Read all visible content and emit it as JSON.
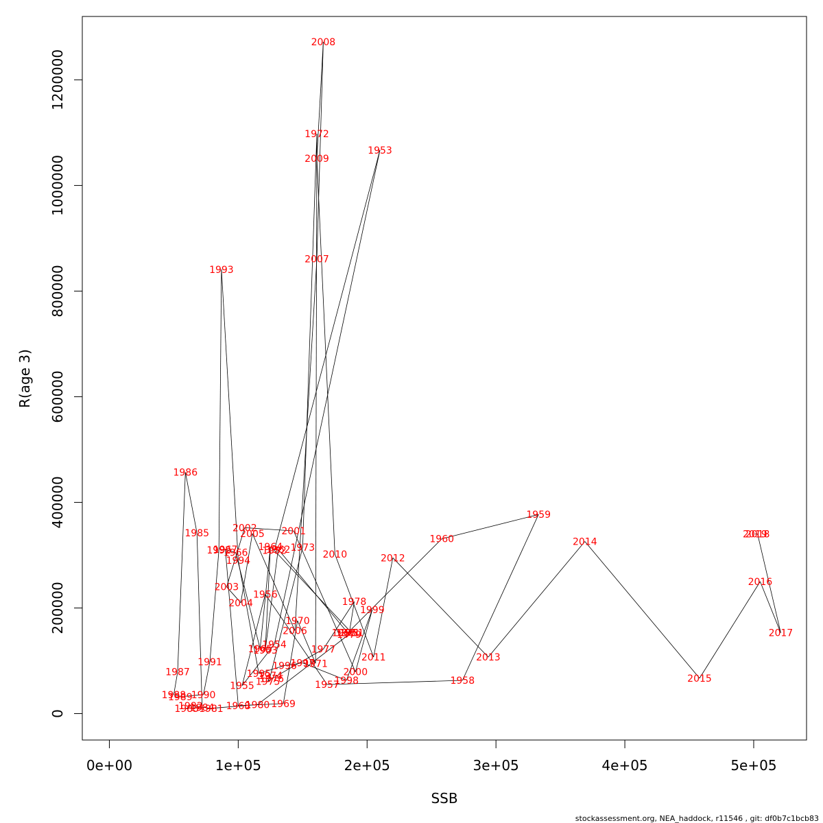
{
  "caption": "stockassessment.org, NEA_haddock, r11546 , git: df0b7c1bcb83",
  "chart_data": {
    "type": "line",
    "xlabel": "SSB",
    "ylabel": "R(age 3)",
    "xlim": [
      -21000,
      541000
    ],
    "ylim": [
      -50000,
      1320000
    ],
    "x_ticks": [
      0,
      100000,
      200000,
      300000,
      400000,
      500000
    ],
    "x_tick_labels": [
      "0e+00",
      "1e+05",
      "2e+05",
      "3e+05",
      "4e+05",
      "5e+05"
    ],
    "y_ticks": [
      0,
      200000,
      400000,
      600000,
      800000,
      1000000,
      1200000
    ],
    "y_tick_labels": [
      "0",
      "200000",
      "400000",
      "600000",
      "800000",
      "1000000",
      "1200000"
    ],
    "grid": false,
    "line_color": "#000000",
    "label_color": "#ff0000",
    "points": [
      {
        "year": "1950",
        "ssb": 182000,
        "r": 153000
      },
      {
        "year": "1951",
        "ssb": 188000,
        "r": 153000
      },
      {
        "year": "1952",
        "ssb": 128000,
        "r": 309000
      },
      {
        "year": "1953",
        "ssb": 210000,
        "r": 1067000
      },
      {
        "year": "1954",
        "ssb": 128000,
        "r": 131000
      },
      {
        "year": "1955",
        "ssb": 103000,
        "r": 53000
      },
      {
        "year": "1956",
        "ssb": 121000,
        "r": 226000
      },
      {
        "year": "1957",
        "ssb": 169000,
        "r": 55000
      },
      {
        "year": "1958",
        "ssb": 274000,
        "r": 63000
      },
      {
        "year": "1959",
        "ssb": 333000,
        "r": 377000
      },
      {
        "year": "1960",
        "ssb": 258000,
        "r": 331000
      },
      {
        "year": "1961",
        "ssb": 185000,
        "r": 153000
      },
      {
        "year": "1962",
        "ssb": 131000,
        "r": 311000
      },
      {
        "year": "1963",
        "ssb": 121000,
        "r": 120000
      },
      {
        "year": "1964",
        "ssb": 125000,
        "r": 316000
      },
      {
        "year": "1965",
        "ssb": 117000,
        "r": 123000
      },
      {
        "year": "1966",
        "ssb": 98000,
        "r": 305000
      },
      {
        "year": "1967",
        "ssb": 90000,
        "r": 311000
      },
      {
        "year": "1968",
        "ssb": 100000,
        "r": 15000
      },
      {
        "year": "1969",
        "ssb": 135000,
        "r": 19000
      },
      {
        "year": "1970",
        "ssb": 146000,
        "r": 176000
      },
      {
        "year": "1971",
        "ssb": 160000,
        "r": 95000
      },
      {
        "year": "1972",
        "ssb": 161000,
        "r": 1098000
      },
      {
        "year": "1973",
        "ssb": 150000,
        "r": 315000
      },
      {
        "year": "1974",
        "ssb": 125000,
        "r": 72000
      },
      {
        "year": "1975",
        "ssb": 123000,
        "r": 61000
      },
      {
        "year": "1976",
        "ssb": 126000,
        "r": 66000
      },
      {
        "year": "1977",
        "ssb": 166000,
        "r": 122000
      },
      {
        "year": "1978",
        "ssb": 190000,
        "r": 212000
      },
      {
        "year": "1979",
        "ssb": 186000,
        "r": 150000
      },
      {
        "year": "1980",
        "ssb": 115000,
        "r": 17000
      },
      {
        "year": "1981",
        "ssb": 79000,
        "r": 10000
      },
      {
        "year": "1982",
        "ssb": 63000,
        "r": 15000
      },
      {
        "year": "1983",
        "ssb": 60000,
        "r": 10000
      },
      {
        "year": "1984",
        "ssb": 72000,
        "r": 12000
      },
      {
        "year": "1985",
        "ssb": 68000,
        "r": 342000
      },
      {
        "year": "1986",
        "ssb": 59000,
        "r": 457000
      },
      {
        "year": "1987",
        "ssb": 53000,
        "r": 79000
      },
      {
        "year": "1988",
        "ssb": 50000,
        "r": 36000
      },
      {
        "year": "1989",
        "ssb": 55000,
        "r": 32000
      },
      {
        "year": "1990",
        "ssb": 73000,
        "r": 36000
      },
      {
        "year": "1991",
        "ssb": 78000,
        "r": 98000
      },
      {
        "year": "1992",
        "ssb": 85000,
        "r": 310000
      },
      {
        "year": "1993",
        "ssb": 87000,
        "r": 841000
      },
      {
        "year": "1994",
        "ssb": 100000,
        "r": 290000
      },
      {
        "year": "1995",
        "ssb": 116000,
        "r": 76000
      },
      {
        "year": "1996",
        "ssb": 136000,
        "r": 91000
      },
      {
        "year": "1997",
        "ssb": 150000,
        "r": 96000
      },
      {
        "year": "1998",
        "ssb": 184000,
        "r": 63000
      },
      {
        "year": "1999",
        "ssb": 204000,
        "r": 197000
      },
      {
        "year": "2000",
        "ssb": 191000,
        "r": 79000
      },
      {
        "year": "2001",
        "ssb": 143000,
        "r": 346000
      },
      {
        "year": "2002",
        "ssb": 105000,
        "r": 352000
      },
      {
        "year": "2003",
        "ssb": 91000,
        "r": 240000
      },
      {
        "year": "2004",
        "ssb": 102000,
        "r": 210000
      },
      {
        "year": "2005",
        "ssb": 111000,
        "r": 341000
      },
      {
        "year": "2006",
        "ssb": 144000,
        "r": 157000
      },
      {
        "year": "2007",
        "ssb": 161000,
        "r": 861000
      },
      {
        "year": "2008",
        "ssb": 166000,
        "r": 1272000
      },
      {
        "year": "2009",
        "ssb": 161000,
        "r": 1051000
      },
      {
        "year": "2010",
        "ssb": 175000,
        "r": 302000
      },
      {
        "year": "2011",
        "ssb": 205000,
        "r": 107000
      },
      {
        "year": "2012",
        "ssb": 220000,
        "r": 295000
      },
      {
        "year": "2013",
        "ssb": 294000,
        "r": 107000
      },
      {
        "year": "2014",
        "ssb": 369000,
        "r": 326000
      },
      {
        "year": "2015",
        "ssb": 458000,
        "r": 67000
      },
      {
        "year": "2016",
        "ssb": 505000,
        "r": 250000
      },
      {
        "year": "2017",
        "ssb": 521000,
        "r": 153000
      },
      {
        "year": "2018",
        "ssb": 503000,
        "r": 340000
      },
      {
        "year": "2019",
        "ssb": 501000,
        "r": 340000
      }
    ]
  }
}
